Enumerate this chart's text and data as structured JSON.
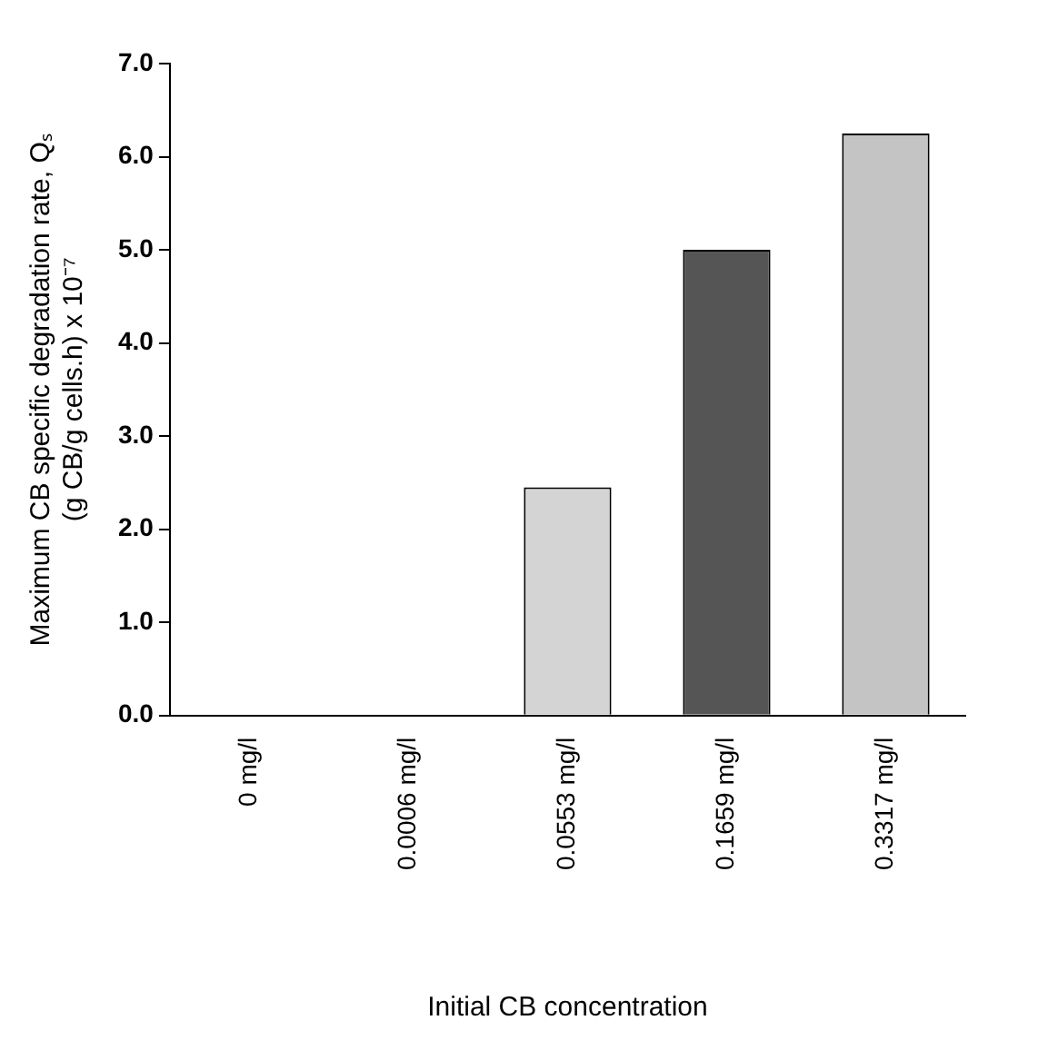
{
  "chart_data": {
    "type": "bar",
    "xlabel": "Initial CB concentration",
    "ylabel": "Maximum CB specific degradation rate, Qₛ\n(g CB/g cells.h) x 10⁻⁷",
    "categories": [
      "0 mg/l",
      "0.0006 mg/l",
      "0.0553 mg/l",
      "0.1659 mg/l",
      "0.3317 mg/l"
    ],
    "values": [
      0,
      0,
      2.45,
      5.0,
      6.25
    ],
    "colors": [
      "#cccccc",
      "#cccccc",
      "#d4d4d4",
      "#555555",
      "#c4c4c4"
    ],
    "ylim": [
      0,
      7
    ],
    "yticks": [
      {
        "value": 0,
        "label": "0.0"
      },
      {
        "value": 1,
        "label": "1.0"
      },
      {
        "value": 2,
        "label": "2.0"
      },
      {
        "value": 3,
        "label": "3.0"
      },
      {
        "value": 4,
        "label": "4.0"
      },
      {
        "value": 5,
        "label": "5.0"
      },
      {
        "value": 6,
        "label": "6.0"
      },
      {
        "value": 7,
        "label": "7.0"
      }
    ],
    "grid": false,
    "legend": false
  }
}
